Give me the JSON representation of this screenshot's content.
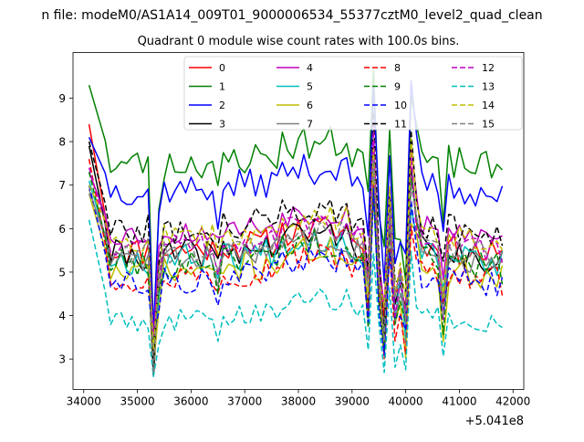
{
  "chart_data": {
    "type": "line",
    "suptitle": "n file: modeM0/AS1A14_009T01_9000006534_55377cztM0_level2_quad_clean",
    "title": "Quadrant 0 module wise count rates with 100.0s bins.",
    "xlabel": "",
    "ylabel": "",
    "x_offset_label": "+5.041e8",
    "x_offset": 504100000,
    "xlim": [
      33800,
      42200
    ],
    "ylim": [
      2.3,
      10.05
    ],
    "x_ticks": [
      34000,
      35000,
      36000,
      37000,
      38000,
      39000,
      40000,
      41000,
      42000
    ],
    "x_tick_labels": [
      "34000",
      "35000",
      "36000",
      "37000",
      "38000",
      "39000",
      "40000",
      "41000",
      "42000"
    ],
    "y_ticks": [
      3,
      4,
      5,
      6,
      7,
      8,
      9
    ],
    "y_tick_labels": [
      "3",
      "4",
      "5",
      "6",
      "7",
      "8",
      "9"
    ],
    "x": {
      "start": 34100,
      "step": 100,
      "count": 78
    },
    "legend": {
      "location": "upper center",
      "ncol": 4
    },
    "features": [
      {
        "t": 35300,
        "dip": 2.2
      },
      {
        "t": 35400,
        "dip": 0.6
      },
      {
        "t": 36500,
        "dip": 0.5
      },
      {
        "t": 39300,
        "dip": 1.1
      },
      {
        "t": 39400,
        "bump": 1.9
      },
      {
        "t": 39500,
        "dip": 0.7
      },
      {
        "t": 39600,
        "dip": 1.9
      },
      {
        "t": 39700,
        "bump": 0.7
      },
      {
        "t": 39800,
        "dip": 1.8
      },
      {
        "t": 39900,
        "dip": 0.9
      },
      {
        "t": 40000,
        "dip": 1.6
      },
      {
        "t": 40100,
        "bump": 1.7
      },
      {
        "t": 40200,
        "bump": 0.6
      },
      {
        "t": 40700,
        "dip": 1.2
      }
    ],
    "series": [
      {
        "name": "0",
        "color": "#ff0000",
        "dash": "",
        "start": 8.4,
        "base": 5.6,
        "jitter": 0.35,
        "seed": 11
      },
      {
        "name": "1",
        "color": "#008000",
        "dash": "",
        "start": 9.3,
        "base": 7.6,
        "jitter": 0.4,
        "seed": 23
      },
      {
        "name": "2",
        "color": "#0000ff",
        "dash": "",
        "start": 8.1,
        "base": 7.0,
        "jitter": 0.35,
        "seed": 37
      },
      {
        "name": "3",
        "color": "#000000",
        "dash": "",
        "start": 7.9,
        "base": 5.5,
        "jitter": 0.35,
        "seed": 41
      },
      {
        "name": "4",
        "color": "#bf00bf",
        "dash": "",
        "start": 7.3,
        "base": 6.0,
        "jitter": 0.3,
        "seed": 53
      },
      {
        "name": "5",
        "color": "#00bfbf",
        "dash": "",
        "start": 7.1,
        "base": 5.4,
        "jitter": 0.35,
        "seed": 67
      },
      {
        "name": "6",
        "color": "#bfbf00",
        "dash": "",
        "start": 6.8,
        "base": 5.1,
        "jitter": 0.35,
        "seed": 71
      },
      {
        "name": "7",
        "color": "#808080",
        "dash": "",
        "start": 6.9,
        "base": 5.4,
        "jitter": 0.3,
        "seed": 83
      },
      {
        "name": "8",
        "color": "#ff0000",
        "dash": "6,3",
        "start": 7.6,
        "base": 5.0,
        "jitter": 0.35,
        "seed": 97
      },
      {
        "name": "9",
        "color": "#008000",
        "dash": "6,3",
        "start": 7.3,
        "base": 5.3,
        "jitter": 0.35,
        "seed": 101
      },
      {
        "name": "10",
        "color": "#0000ff",
        "dash": "6,3",
        "start": 7.0,
        "base": 4.9,
        "jitter": 0.3,
        "seed": 113
      },
      {
        "name": "11",
        "color": "#000000",
        "dash": "6,3",
        "start": 8.0,
        "base": 6.1,
        "jitter": 0.35,
        "seed": 127
      },
      {
        "name": "12",
        "color": "#bf00bf",
        "dash": "6,3",
        "start": 7.4,
        "base": 5.7,
        "jitter": 0.3,
        "seed": 131
      },
      {
        "name": "13",
        "color": "#00bfbf",
        "dash": "6,3",
        "start": 6.2,
        "base": 4.0,
        "jitter": 0.25,
        "seed": 149
      },
      {
        "name": "14",
        "color": "#bfbf00",
        "dash": "6,3",
        "start": 7.0,
        "base": 5.9,
        "jitter": 0.3,
        "seed": 157
      },
      {
        "name": "15",
        "color": "#808080",
        "dash": "6,3",
        "start": 6.8,
        "base": 5.6,
        "jitter": 0.3,
        "seed": 163
      }
    ]
  }
}
